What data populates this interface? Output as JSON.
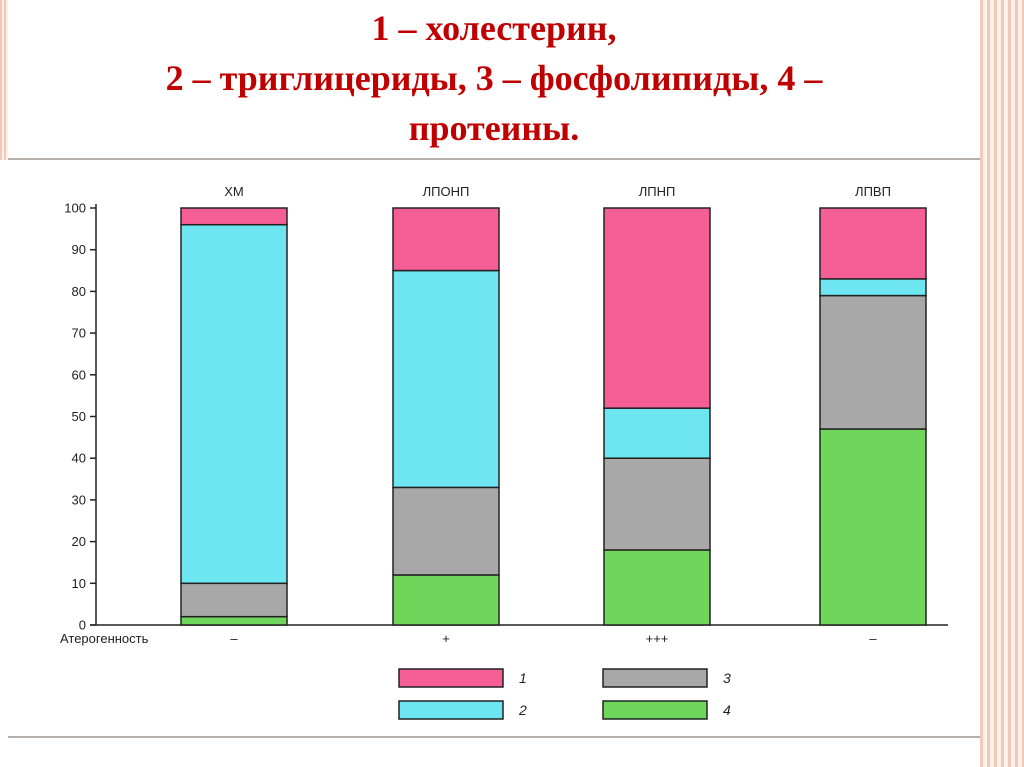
{
  "slide": {
    "title_lines": [
      "1 – холестерин,",
      "2 – триглицериды, 3 – фосфолипиды, 4 –",
      "протеины."
    ]
  },
  "chart_data": {
    "type": "bar",
    "stacked": true,
    "categories": [
      "ХМ",
      "ЛПОНП",
      "ЛПНП",
      "ЛПВП"
    ],
    "series": [
      {
        "name": "4",
        "color": "#6ed65a",
        "values": [
          2,
          12,
          18,
          47
        ]
      },
      {
        "name": "3",
        "color": "#a8a8a8",
        "values": [
          8,
          21,
          22,
          32
        ]
      },
      {
        "name": "2",
        "color": "#6ee6f2",
        "values": [
          86,
          52,
          12,
          4
        ]
      },
      {
        "name": "1",
        "color": "#f55f95",
        "values": [
          4,
          15,
          48,
          17
        ]
      }
    ],
    "ylim": [
      0,
      100
    ],
    "yticks": [
      0,
      10,
      20,
      30,
      40,
      50,
      60,
      70,
      80,
      90,
      100
    ],
    "row_label": "Атерогенность",
    "row_values": [
      "–",
      "+",
      "+++",
      "–"
    ],
    "legend": [
      {
        "label": "1",
        "color": "#f55f95"
      },
      {
        "label": "3",
        "color": "#a8a8a8"
      },
      {
        "label": "2",
        "color": "#6ee6f2"
      },
      {
        "label": "4",
        "color": "#6ed65a"
      }
    ],
    "legend_position": "bottom"
  }
}
